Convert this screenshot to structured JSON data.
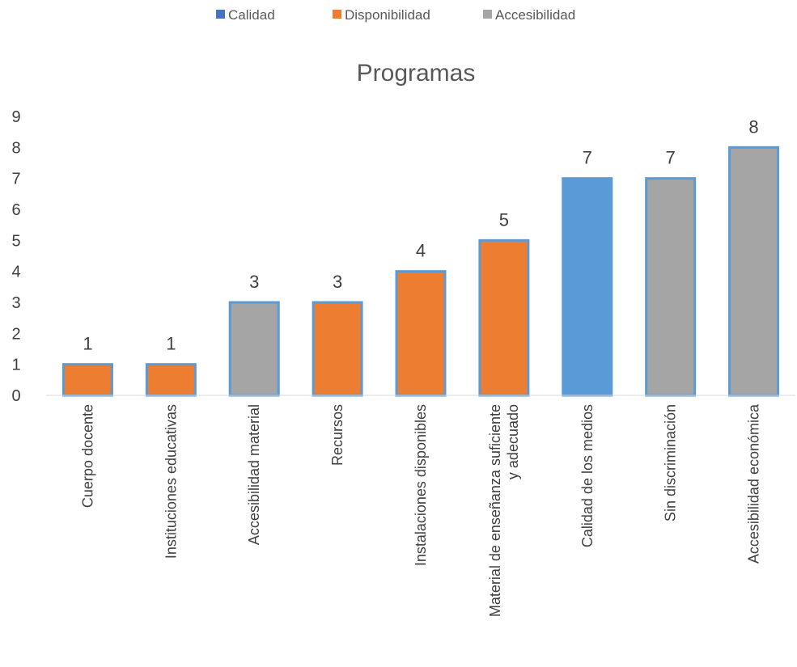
{
  "chart_data": {
    "type": "bar",
    "title": "Programas",
    "xlabel": "",
    "ylabel": "",
    "ylim": [
      0,
      9
    ],
    "yticks": [
      0,
      1,
      2,
      3,
      4,
      5,
      6,
      7,
      8,
      9
    ],
    "grid": false,
    "legend_position": "top",
    "legend": [
      {
        "name": "Calidad",
        "color": "#4472C4"
      },
      {
        "name": "Disponibilidad",
        "color": "#ED7D31"
      },
      {
        "name": "Accesibilidad",
        "color": "#A5A5A5"
      }
    ],
    "bar_border_color": "#5B9BD5",
    "categories": [
      [
        "Cuerpo docente"
      ],
      [
        "Instituciones educativas"
      ],
      [
        "Accesibilidad material"
      ],
      [
        "Recursos"
      ],
      [
        "Instalaciones disponibles"
      ],
      [
        "Material de enseñanza suficiente",
        "y adecuado"
      ],
      [
        "Calidad de los medios"
      ],
      [
        "Sin discriminación"
      ],
      [
        "Accesibilidad económica"
      ]
    ],
    "values": [
      1,
      1,
      3,
      3,
      4,
      5,
      7,
      7,
      8
    ],
    "bar_colors": [
      "#ED7D31",
      "#ED7D31",
      "#A5A5A5",
      "#ED7D31",
      "#ED7D31",
      "#ED7D31",
      "#5B9BD5",
      "#A5A5A5",
      "#A5A5A5"
    ],
    "data_labels": [
      "1",
      "1",
      "3",
      "3",
      "4",
      "5",
      "7",
      "7",
      "8"
    ]
  }
}
